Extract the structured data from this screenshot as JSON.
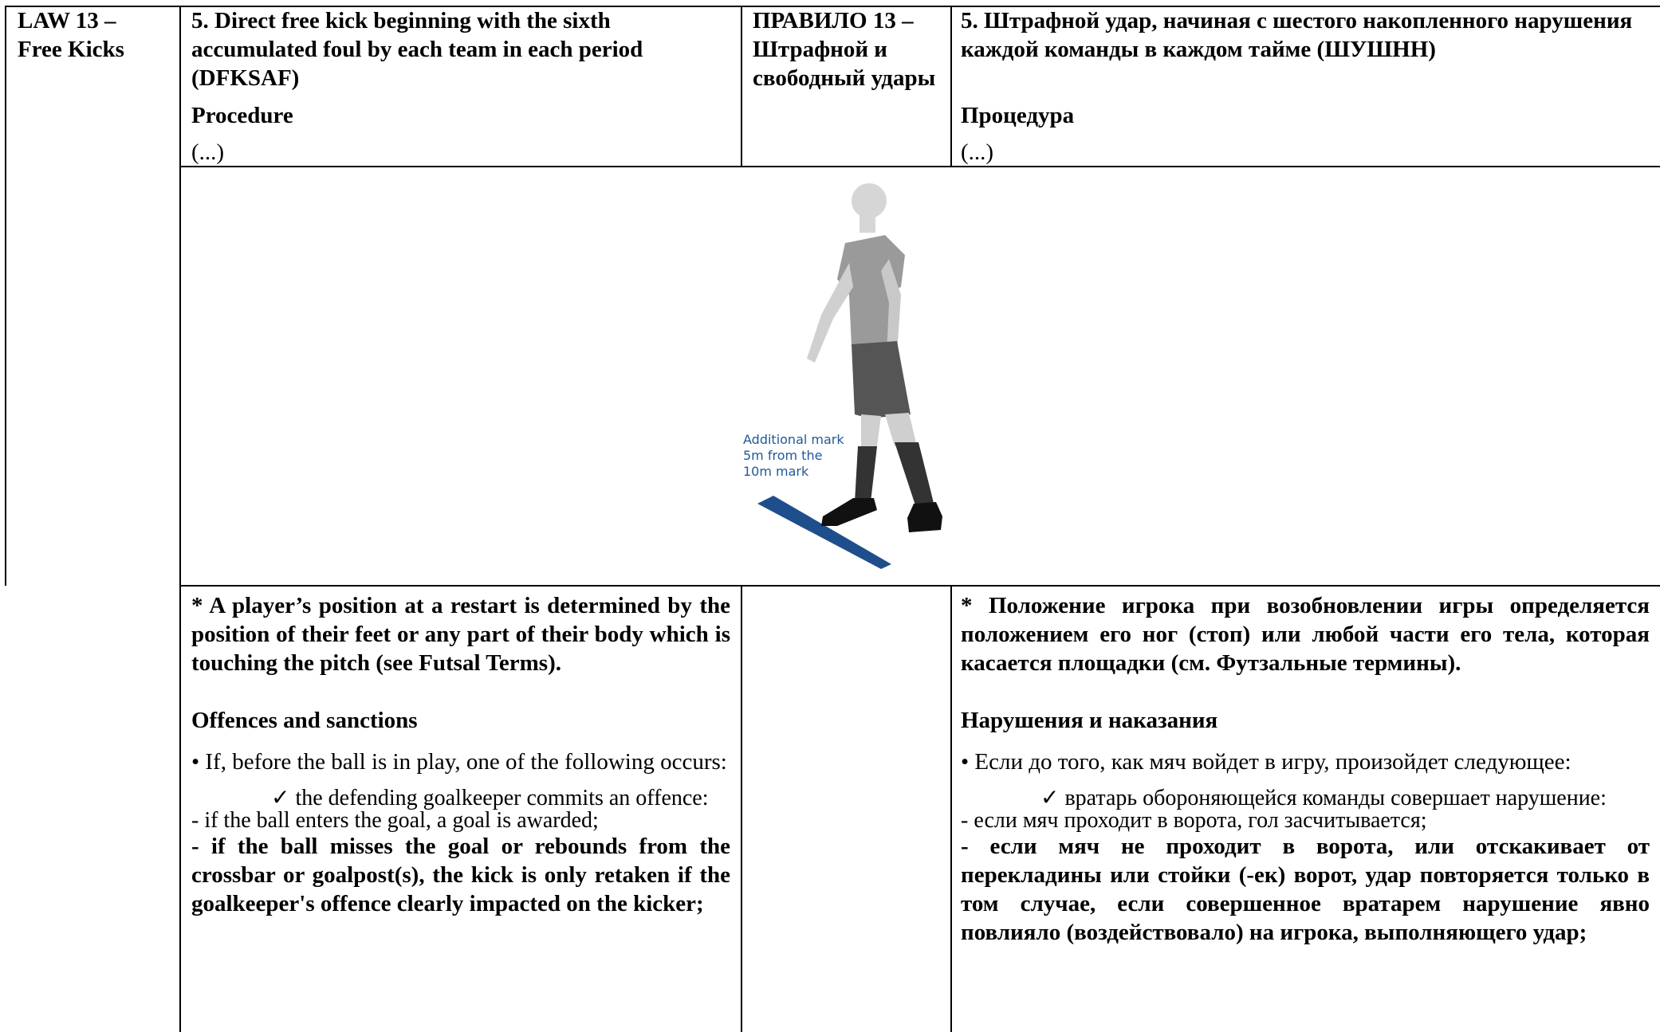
{
  "table": {
    "law_en": "LAW 13 –\nFree Kicks",
    "heading_en": "5. Direct free kick beginning with the sixth accumulated foul by each team in each period (DFKSAF)",
    "procedure_en": "Procedure",
    "ellipsis_en": "(...)",
    "law_ru": "ПРАВИЛО 13 – Штрафной и свободный удары",
    "heading_ru": "5. Штрафной удар, начиная с шестого накопленного нарушения каждой команды в каждом тайме (ШУШНН)",
    "procedure_ru": "Процедура",
    "ellipsis_ru": "(...)"
  },
  "figure": {
    "caption": [
      "Additional mark",
      "5m from the",
      "10m mark"
    ]
  },
  "body_en": [
    "* A player’s position at a restart is determined by the position of their feet or any part of their body which is touching the pitch (see Futsal Terms).",
    "Offences and sanctions",
    "• If, before the ball is in play, one of the following occurs:",
    "✓ the defending goalkeeper commits an offence:",
    "- if the ball enters the goal, a goal is awarded;",
    "- if the ball misses the goal or rebounds from the crossbar or goalpost(s), the kick is only retaken if the goalkeeper's offence clearly impacted on the kicker;"
  ],
  "body_ru": [
    "* Положение игрока при возобновлении игры определяется положением его ног (стоп) или любой части его тела, которая касается площадки (см. Футзальные термины).",
    "Нарушения и наказания",
    "• Если до того, как мяч войдет в игру, произойдет следующее:",
    "✓ вратарь обороняющейся команды совершает нарушение:",
    "- если мяч проходит в ворота, гол засчитывается;",
    "- если мяч не проходит в ворота, или отскакивает от перекладины или стойки (-ек) ворот, удар повторяется только в том случае, если совершенное вратарем нарушение явно повлияло (воздействовало) на игрока, выполняющего удар;"
  ]
}
